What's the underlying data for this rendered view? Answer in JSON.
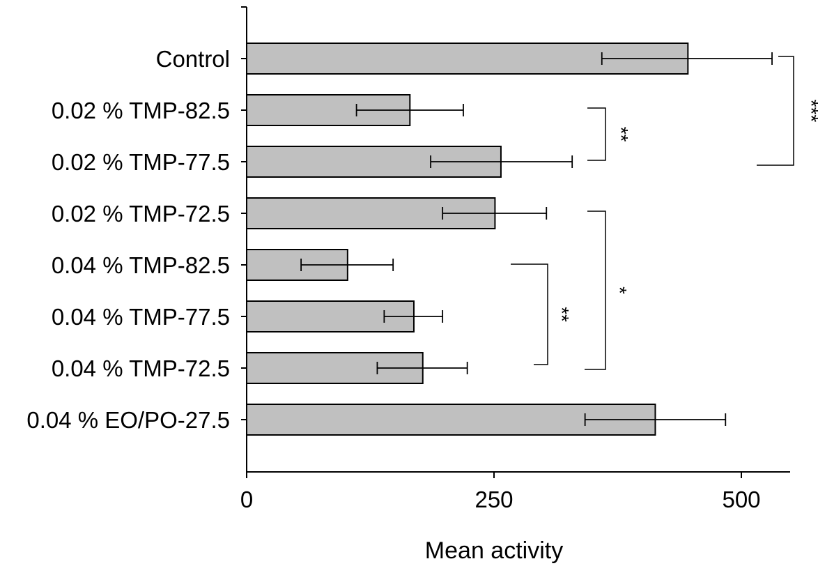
{
  "chart_data": {
    "type": "bar",
    "orientation": "horizontal",
    "categories": [
      "Control",
      "0.02 % TMP-82.5",
      "0.02 % TMP-77.5",
      "0.02 % TMP-72.5",
      "0.04 % TMP-82.5",
      "0.04 % TMP-77.5",
      "0.04 % TMP-72.5",
      "0.04 % EO/PO-27.5"
    ],
    "values": [
      446,
      165,
      257,
      251,
      102,
      169,
      178,
      413
    ],
    "error_low": [
      359,
      111,
      186,
      198,
      55,
      139,
      132,
      342
    ],
    "error_high": [
      531,
      219,
      329,
      303,
      148,
      198,
      223,
      484
    ],
    "xlabel": "Mean activity",
    "ylabel": "",
    "xlim": [
      0,
      550
    ],
    "xticks": [
      0,
      250,
      500
    ],
    "tick_labels": [
      "0",
      "250",
      "500"
    ],
    "bar_color": "#c0c0c0",
    "grid": false,
    "significance": [
      {
        "from": 0,
        "to": 2,
        "label": "***"
      },
      {
        "from": 1,
        "to": 2,
        "label": "**"
      },
      {
        "from": 3,
        "to": 6,
        "label": "*"
      },
      {
        "from": 4,
        "to": 6,
        "label": "**"
      }
    ]
  }
}
